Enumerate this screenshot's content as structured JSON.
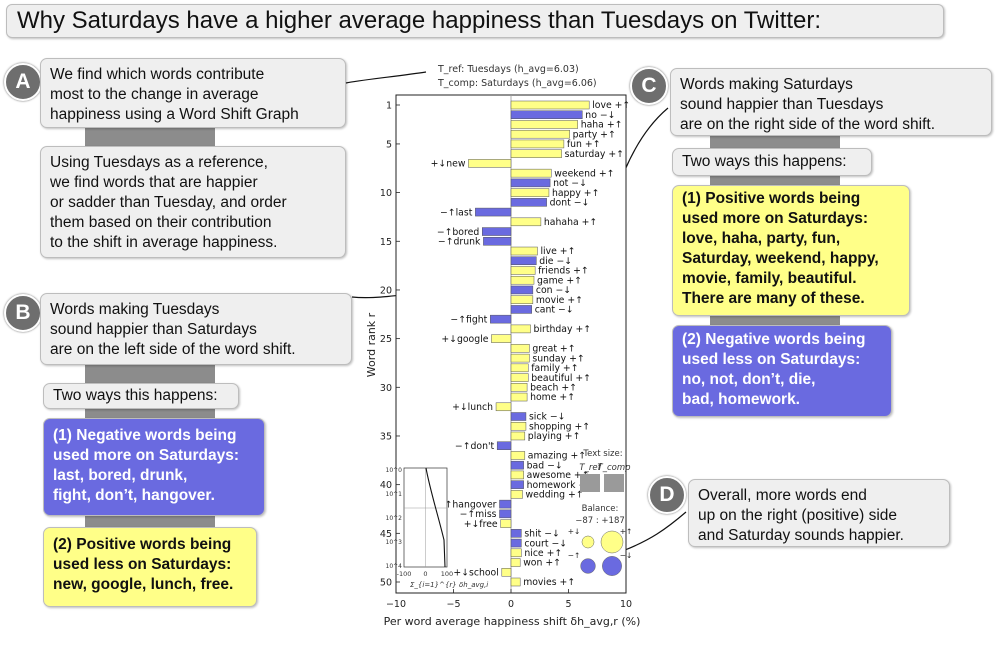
{
  "title": "Why Saturdays have a higher average happiness than Tuesdays on Twitter:",
  "badges": {
    "a": "A",
    "b": "B",
    "c": "C",
    "d": "D"
  },
  "panel_a": {
    "intro": [
      "We find which words contribute",
      "most to the change in average",
      "happiness using a Word Shift Graph"
    ],
    "method": [
      "Using Tuesdays as a reference,",
      "we find words that are happier",
      "or sadder than Tuesday, and order",
      "them based on their contribution",
      "to the shift in average happiness."
    ]
  },
  "panel_b": {
    "intro": [
      "Words making Tuesdays",
      "sound happier than Saturdays",
      "are on the left side of the word shift."
    ],
    "ways": "Two ways this happens:",
    "neg_more": [
      "(1) Negative words being",
      "used more on Saturdays:",
      "last, bored, drunk,",
      "fight, don’t, hangover."
    ],
    "pos_less": [
      "(2) Positive words being",
      "used less on Saturdays:",
      "new, google, lunch, free."
    ]
  },
  "panel_c": {
    "intro": [
      "Words making Saturdays",
      "sound happier than Tuesdays",
      "are on the right side of the word shift."
    ],
    "ways": "Two ways this happens:",
    "pos_more": [
      "(1) Positive words being",
      "used more on Saturdays:",
      "love, haha, party, fun,",
      "Saturday, weekend, happy,",
      "movie, family, beautiful.",
      "There are many of these."
    ],
    "neg_less": [
      "(2) Negative words being",
      "used less on Saturdays:",
      "no, not, don’t, die,",
      "bad, homework."
    ]
  },
  "panel_d": {
    "text": [
      "Overall, more words end",
      "up on the right (positive) side",
      "and Saturday sounds happier."
    ]
  },
  "colors": {
    "pos_up": "#ffff88",
    "neg_down": "#6a6ae0",
    "box_bg": "#efefef",
    "connector": "#8c8c8c"
  },
  "chart_data": {
    "type": "bar",
    "orientation": "horizontal",
    "header": [
      "T_ref: Tuesdays (h_avg=6.03)",
      "T_comp: Saturdays (h_avg=6.06)"
    ],
    "xlabel": "Per word average happiness shift δh_avg,r (%)",
    "ylabel": "Word rank r",
    "xlim": [
      -10,
      10
    ],
    "ylim": [
      1,
      50
    ],
    "xticks": [
      -10,
      -5,
      0,
      5,
      10
    ],
    "yticks": [
      1,
      5,
      10,
      15,
      20,
      25,
      30,
      35,
      40,
      45,
      50
    ],
    "words": [
      {
        "rank": 1,
        "label": "love +↑",
        "value": 6.8,
        "type": "pos_up"
      },
      {
        "rank": 2,
        "label": "no −↓",
        "value": 6.2,
        "type": "neg_down"
      },
      {
        "rank": 3,
        "label": "haha +↑",
        "value": 5.8,
        "type": "pos_up"
      },
      {
        "rank": 4,
        "label": "party +↑",
        "value": 5.1,
        "type": "pos_up"
      },
      {
        "rank": 5,
        "label": "fun +↑",
        "value": 4.6,
        "type": "pos_up"
      },
      {
        "rank": 6,
        "label": "saturday +↑",
        "value": 4.4,
        "type": "pos_up"
      },
      {
        "rank": 7,
        "label": "+↓new",
        "value": -3.7,
        "type": "pos_down"
      },
      {
        "rank": 8,
        "label": "weekend +↑",
        "value": 3.5,
        "type": "pos_up"
      },
      {
        "rank": 9,
        "label": "not −↓",
        "value": 3.4,
        "type": "neg_down"
      },
      {
        "rank": 10,
        "label": "happy +↑",
        "value": 3.3,
        "type": "pos_up"
      },
      {
        "rank": 11,
        "label": "dont −↓",
        "value": 3.1,
        "type": "neg_down"
      },
      {
        "rank": 12,
        "label": "−↑last",
        "value": -3.1,
        "type": "neg_up"
      },
      {
        "rank": 13,
        "label": "hahaha +↑",
        "value": 2.6,
        "type": "pos_up"
      },
      {
        "rank": 14,
        "label": "−↑bored",
        "value": -2.5,
        "type": "neg_up"
      },
      {
        "rank": 15,
        "label": "−↑drunk",
        "value": -2.4,
        "type": "neg_up"
      },
      {
        "rank": 16,
        "label": "live +↑",
        "value": 2.3,
        "type": "pos_up"
      },
      {
        "rank": 17,
        "label": "die −↓",
        "value": 2.2,
        "type": "neg_down"
      },
      {
        "rank": 18,
        "label": "friends +↑",
        "value": 2.1,
        "type": "pos_up"
      },
      {
        "rank": 19,
        "label": "game +↑",
        "value": 2.0,
        "type": "pos_up"
      },
      {
        "rank": 20,
        "label": "con −↓",
        "value": 1.9,
        "type": "neg_down"
      },
      {
        "rank": 21,
        "label": "movie +↑",
        "value": 1.9,
        "type": "pos_up"
      },
      {
        "rank": 22,
        "label": "cant −↓",
        "value": 1.8,
        "type": "neg_down"
      },
      {
        "rank": 23,
        "label": "−↑fight",
        "value": -1.8,
        "type": "neg_up"
      },
      {
        "rank": 24,
        "label": "birthday +↑",
        "value": 1.7,
        "type": "pos_up"
      },
      {
        "rank": 25,
        "label": "+↓google",
        "value": -1.7,
        "type": "pos_down"
      },
      {
        "rank": 26,
        "label": "great +↑",
        "value": 1.6,
        "type": "pos_up"
      },
      {
        "rank": 27,
        "label": "sunday +↑",
        "value": 1.6,
        "type": "pos_up"
      },
      {
        "rank": 28,
        "label": "family +↑",
        "value": 1.5,
        "type": "pos_up"
      },
      {
        "rank": 29,
        "label": "beautiful +↑",
        "value": 1.5,
        "type": "pos_up"
      },
      {
        "rank": 30,
        "label": "beach +↑",
        "value": 1.4,
        "type": "pos_up"
      },
      {
        "rank": 31,
        "label": "home +↑",
        "value": 1.4,
        "type": "pos_up"
      },
      {
        "rank": 32,
        "label": "+↓lunch",
        "value": -1.3,
        "type": "pos_down"
      },
      {
        "rank": 33,
        "label": "sick −↓",
        "value": 1.3,
        "type": "neg_down"
      },
      {
        "rank": 34,
        "label": "shopping +↑",
        "value": 1.3,
        "type": "pos_up"
      },
      {
        "rank": 35,
        "label": "playing +↑",
        "value": 1.2,
        "type": "pos_up"
      },
      {
        "rank": 36,
        "label": "−↑don't",
        "value": -1.2,
        "type": "neg_up"
      },
      {
        "rank": 37,
        "label": "amazing +↑",
        "value": 1.2,
        "type": "pos_up"
      },
      {
        "rank": 38,
        "label": "bad −↓",
        "value": 1.1,
        "type": "neg_down"
      },
      {
        "rank": 39,
        "label": "awesome +↑",
        "value": 1.1,
        "type": "pos_up"
      },
      {
        "rank": 40,
        "label": "homework −↓",
        "value": 1.1,
        "type": "neg_down"
      },
      {
        "rank": 41,
        "label": "wedding +↑",
        "value": 1.0,
        "type": "pos_up"
      },
      {
        "rank": 42,
        "label": "−↑hangover",
        "value": -1.0,
        "type": "neg_up"
      },
      {
        "rank": 43,
        "label": "−↑miss",
        "value": -1.0,
        "type": "neg_up"
      },
      {
        "rank": 44,
        "label": "+↓free",
        "value": -0.9,
        "type": "pos_down"
      },
      {
        "rank": 45,
        "label": "shit −↓",
        "value": 0.9,
        "type": "neg_down"
      },
      {
        "rank": 46,
        "label": "court −↓",
        "value": 0.9,
        "type": "neg_down"
      },
      {
        "rank": 47,
        "label": "nice +↑",
        "value": 0.9,
        "type": "pos_up"
      },
      {
        "rank": 48,
        "label": "won +↑",
        "value": 0.8,
        "type": "pos_up"
      },
      {
        "rank": 49,
        "label": "+↓school",
        "value": -0.8,
        "type": "pos_down"
      },
      {
        "rank": 50,
        "label": "movies +↑",
        "value": 0.8,
        "type": "pos_up"
      }
    ],
    "text_size_inset": {
      "title": "Text size:",
      "labels": [
        "T_ref",
        "T_comp"
      ],
      "values": [
        1.0,
        1.0
      ]
    },
    "balance_inset": {
      "title": "Balance:",
      "totals": [
        "−87",
        "+187"
      ],
      "labels": [
        "+↓",
        "+↑",
        "−↑",
        "−↓"
      ],
      "types": [
        "pos_down",
        "pos_up",
        "neg_up",
        "neg_down"
      ],
      "sizes": [
        0.45,
        1.0,
        0.6,
        0.85
      ]
    },
    "cumulative_inset": {
      "ylabel_ticks": [
        "10^0",
        "10^1",
        "10^2",
        "10^3",
        "10^4"
      ],
      "xticks": [
        "-100",
        "0",
        "100"
      ],
      "xlabel": "Σ_{i=1}^{r} δh_avg,i"
    }
  }
}
